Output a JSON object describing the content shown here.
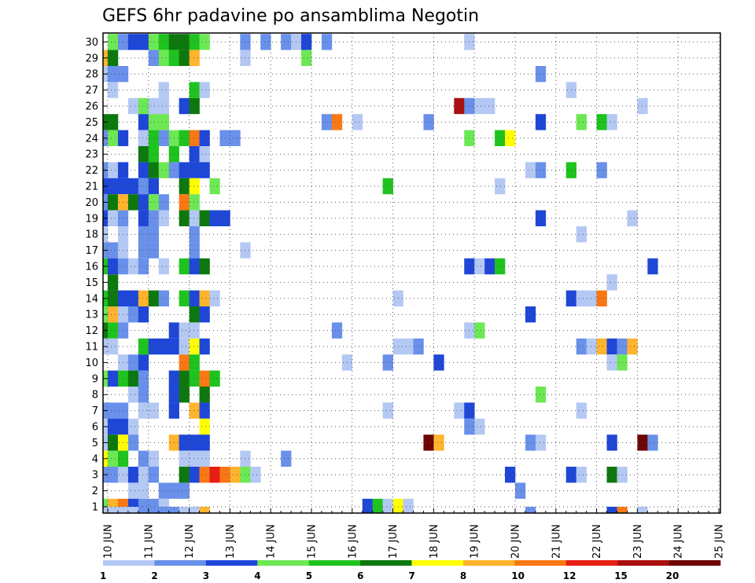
{
  "chart_data": {
    "type": "heatmap",
    "title": "GEFS 6hr padavine po ansamblima Negotin",
    "xlabel": "",
    "ylabel": "",
    "x_tick_labels": [
      "10 JUN",
      "11 JUN",
      "12 JUN",
      "13 JUN",
      "14 JUN",
      "15 JUN",
      "16 JUN",
      "17 JUN",
      "18 JUN",
      "19 JUN",
      "20 JUN",
      "21 JUN",
      "22 JUN",
      "23 JUN",
      "24 JUN",
      "25 JUN"
    ],
    "y_range": [
      0,
      30
    ],
    "y_tick_labels": [
      "1",
      "2",
      "3",
      "4",
      "5",
      "6",
      "7",
      "8",
      "9",
      "10",
      "11",
      "12",
      "13",
      "14",
      "15",
      "16",
      "17",
      "18",
      "19",
      "20",
      "21",
      "22",
      "23",
      "24",
      "25",
      "26",
      "27",
      "28",
      "29",
      "30"
    ],
    "time_steps_per_day": 4,
    "grid": "dotted",
    "legend_placement": "bottom",
    "legend": {
      "colors": [
        "#b4c8f4",
        "#6990ea",
        "#1e46d7",
        "#6de855",
        "#1ec31e",
        "#0d780d",
        "#ffff00",
        "#ffb42d",
        "#fa7814",
        "#e61e14",
        "#aa0f0f",
        "#6e0505"
      ],
      "labels": [
        "1",
        "2",
        "3",
        "4",
        "5",
        "6",
        "7",
        "8",
        "10",
        "12",
        "15",
        "20"
      ]
    },
    "cells": [
      [
        0,
        30,
        4
      ],
      [
        1,
        30,
        2
      ],
      [
        2,
        30,
        3
      ],
      [
        3,
        30,
        3
      ],
      [
        4,
        30,
        4
      ],
      [
        5,
        30,
        5
      ],
      [
        6,
        30,
        6
      ],
      [
        7,
        30,
        6
      ],
      [
        8,
        30,
        5
      ],
      [
        9,
        30,
        4
      ],
      [
        13,
        30,
        2
      ],
      [
        15,
        30,
        2
      ],
      [
        17,
        30,
        2
      ],
      [
        18,
        30,
        1
      ],
      [
        19,
        30,
        3
      ],
      [
        21,
        30,
        2
      ],
      [
        35,
        30,
        1
      ],
      [
        -2,
        29,
        2
      ],
      [
        -1,
        29,
        8
      ],
      [
        0,
        29,
        6
      ],
      [
        4,
        29,
        2
      ],
      [
        5,
        29,
        4
      ],
      [
        6,
        29,
        5
      ],
      [
        7,
        29,
        6
      ],
      [
        8,
        29,
        8
      ],
      [
        13,
        29,
        1
      ],
      [
        19,
        29,
        4
      ],
      [
        -1,
        28,
        1
      ],
      [
        0,
        28,
        2
      ],
      [
        1,
        28,
        2
      ],
      [
        42,
        28,
        2
      ],
      [
        -2,
        27,
        2
      ],
      [
        0,
        27,
        1
      ],
      [
        5,
        27,
        1
      ],
      [
        8,
        27,
        5
      ],
      [
        9,
        27,
        1
      ],
      [
        45,
        27,
        1
      ],
      [
        2,
        26,
        1
      ],
      [
        3,
        26,
        4
      ],
      [
        4,
        26,
        1
      ],
      [
        5,
        26,
        1
      ],
      [
        7,
        26,
        3
      ],
      [
        8,
        26,
        6
      ],
      [
        34,
        26,
        15
      ],
      [
        35,
        26,
        2
      ],
      [
        36,
        26,
        1
      ],
      [
        37,
        26,
        1
      ],
      [
        52,
        26,
        1
      ],
      [
        -1,
        25,
        6
      ],
      [
        0,
        25,
        6
      ],
      [
        3,
        25,
        3
      ],
      [
        4,
        25,
        4
      ],
      [
        5,
        25,
        4
      ],
      [
        21,
        25,
        2
      ],
      [
        22,
        25,
        10
      ],
      [
        24,
        25,
        1
      ],
      [
        31,
        25,
        2
      ],
      [
        42,
        25,
        3
      ],
      [
        46,
        25,
        4
      ],
      [
        48,
        25,
        5
      ],
      [
        49,
        25,
        1
      ],
      [
        -1,
        24,
        2
      ],
      [
        0,
        24,
        4
      ],
      [
        1,
        24,
        3
      ],
      [
        3,
        24,
        1
      ],
      [
        4,
        24,
        5
      ],
      [
        5,
        24,
        2
      ],
      [
        6,
        24,
        4
      ],
      [
        7,
        24,
        5
      ],
      [
        8,
        24,
        10
      ],
      [
        9,
        24,
        3
      ],
      [
        11,
        24,
        2
      ],
      [
        12,
        24,
        2
      ],
      [
        35,
        24,
        4
      ],
      [
        38,
        24,
        5
      ],
      [
        39,
        24,
        7
      ],
      [
        -2,
        23,
        1
      ],
      [
        3,
        23,
        6
      ],
      [
        4,
        23,
        5
      ],
      [
        6,
        23,
        5
      ],
      [
        8,
        23,
        3
      ],
      [
        9,
        23,
        1
      ],
      [
        -1,
        22,
        2
      ],
      [
        0,
        22,
        1
      ],
      [
        1,
        22,
        3
      ],
      [
        3,
        22,
        3
      ],
      [
        4,
        22,
        6
      ],
      [
        5,
        22,
        4
      ],
      [
        6,
        22,
        2
      ],
      [
        7,
        22,
        3
      ],
      [
        8,
        22,
        3
      ],
      [
        9,
        22,
        3
      ],
      [
        41,
        22,
        1
      ],
      [
        42,
        22,
        2
      ],
      [
        45,
        22,
        5
      ],
      [
        48,
        22,
        2
      ],
      [
        -2,
        21,
        2
      ],
      [
        -1,
        21,
        3
      ],
      [
        0,
        21,
        3
      ],
      [
        1,
        21,
        3
      ],
      [
        2,
        21,
        3
      ],
      [
        3,
        21,
        2
      ],
      [
        4,
        21,
        3
      ],
      [
        7,
        21,
        6
      ],
      [
        8,
        21,
        7
      ],
      [
        10,
        21,
        4
      ],
      [
        27,
        21,
        5
      ],
      [
        38,
        21,
        1
      ],
      [
        -2,
        20,
        2
      ],
      [
        -1,
        20,
        2
      ],
      [
        0,
        20,
        6
      ],
      [
        1,
        20,
        8
      ],
      [
        2,
        20,
        6
      ],
      [
        3,
        20,
        3
      ],
      [
        4,
        20,
        4
      ],
      [
        5,
        20,
        2
      ],
      [
        7,
        20,
        10
      ],
      [
        8,
        20,
        4
      ],
      [
        -1,
        19,
        3
      ],
      [
        0,
        19,
        1
      ],
      [
        1,
        19,
        2
      ],
      [
        3,
        19,
        3
      ],
      [
        4,
        19,
        2
      ],
      [
        5,
        19,
        1
      ],
      [
        7,
        19,
        6
      ],
      [
        8,
        19,
        1
      ],
      [
        9,
        19,
        6
      ],
      [
        10,
        19,
        3
      ],
      [
        11,
        19,
        3
      ],
      [
        42,
        19,
        3
      ],
      [
        51,
        19,
        1
      ],
      [
        -1,
        18,
        1
      ],
      [
        1,
        18,
        1
      ],
      [
        3,
        18,
        2
      ],
      [
        4,
        18,
        2
      ],
      [
        8,
        18,
        2
      ],
      [
        46,
        18,
        1
      ],
      [
        -1,
        17,
        2
      ],
      [
        0,
        17,
        2
      ],
      [
        1,
        17,
        1
      ],
      [
        3,
        17,
        2
      ],
      [
        4,
        17,
        2
      ],
      [
        8,
        17,
        2
      ],
      [
        13,
        17,
        1
      ],
      [
        -2,
        16,
        2
      ],
      [
        -1,
        16,
        5
      ],
      [
        0,
        16,
        3
      ],
      [
        1,
        16,
        2
      ],
      [
        2,
        16,
        1
      ],
      [
        3,
        16,
        2
      ],
      [
        5,
        16,
        1
      ],
      [
        7,
        16,
        5
      ],
      [
        8,
        16,
        3
      ],
      [
        9,
        16,
        6
      ],
      [
        35,
        16,
        3
      ],
      [
        36,
        16,
        1
      ],
      [
        37,
        16,
        3
      ],
      [
        38,
        16,
        5
      ],
      [
        53,
        16,
        3
      ],
      [
        0,
        15,
        6
      ],
      [
        49,
        15,
        1
      ],
      [
        -1,
        14,
        5
      ],
      [
        0,
        14,
        6
      ],
      [
        1,
        14,
        3
      ],
      [
        2,
        14,
        3
      ],
      [
        3,
        14,
        8
      ],
      [
        4,
        14,
        6
      ],
      [
        5,
        14,
        2
      ],
      [
        7,
        14,
        5
      ],
      [
        8,
        14,
        3
      ],
      [
        9,
        14,
        8
      ],
      [
        10,
        14,
        1
      ],
      [
        28,
        14,
        1
      ],
      [
        45,
        14,
        3
      ],
      [
        46,
        14,
        1
      ],
      [
        47,
        14,
        1
      ],
      [
        48,
        14,
        11
      ],
      [
        -1,
        13,
        4
      ],
      [
        0,
        13,
        8
      ],
      [
        1,
        13,
        1
      ],
      [
        2,
        13,
        2
      ],
      [
        3,
        13,
        3
      ],
      [
        8,
        13,
        6
      ],
      [
        9,
        13,
        3
      ],
      [
        41,
        13,
        3
      ],
      [
        -2,
        12,
        3
      ],
      [
        -1,
        12,
        6
      ],
      [
        0,
        12,
        5
      ],
      [
        1,
        12,
        2
      ],
      [
        6,
        12,
        3
      ],
      [
        7,
        12,
        1
      ],
      [
        8,
        12,
        1
      ],
      [
        22,
        12,
        2
      ],
      [
        35,
        12,
        1
      ],
      [
        36,
        12,
        4
      ],
      [
        -1,
        11,
        1
      ],
      [
        0,
        11,
        1
      ],
      [
        3,
        11,
        5
      ],
      [
        4,
        11,
        3
      ],
      [
        5,
        11,
        3
      ],
      [
        6,
        11,
        3
      ],
      [
        7,
        11,
        1
      ],
      [
        8,
        11,
        7
      ],
      [
        9,
        11,
        3
      ],
      [
        28,
        11,
        1
      ],
      [
        29,
        11,
        1
      ],
      [
        30,
        11,
        2
      ],
      [
        46,
        11,
        2
      ],
      [
        47,
        11,
        1
      ],
      [
        48,
        11,
        8
      ],
      [
        49,
        11,
        3
      ],
      [
        50,
        11,
        2
      ],
      [
        51,
        11,
        8
      ],
      [
        1,
        10,
        1
      ],
      [
        2,
        10,
        2
      ],
      [
        3,
        10,
        3
      ],
      [
        7,
        10,
        10
      ],
      [
        8,
        10,
        5
      ],
      [
        23,
        10,
        1
      ],
      [
        27,
        10,
        2
      ],
      [
        32,
        10,
        3
      ],
      [
        49,
        10,
        1
      ],
      [
        50,
        10,
        4
      ],
      [
        -2,
        9,
        1
      ],
      [
        -1,
        9,
        4
      ],
      [
        0,
        9,
        3
      ],
      [
        1,
        9,
        5
      ],
      [
        2,
        9,
        6
      ],
      [
        3,
        9,
        2
      ],
      [
        6,
        9,
        3
      ],
      [
        7,
        9,
        6
      ],
      [
        8,
        9,
        5
      ],
      [
        9,
        9,
        10
      ],
      [
        10,
        9,
        5
      ],
      [
        2,
        8,
        1
      ],
      [
        3,
        8,
        2
      ],
      [
        6,
        8,
        3
      ],
      [
        7,
        8,
        6
      ],
      [
        9,
        8,
        6
      ],
      [
        42,
        8,
        4
      ],
      [
        -1,
        7,
        2
      ],
      [
        0,
        7,
        2
      ],
      [
        1,
        7,
        2
      ],
      [
        3,
        7,
        1
      ],
      [
        4,
        7,
        1
      ],
      [
        6,
        7,
        3
      ],
      [
        8,
        7,
        8
      ],
      [
        9,
        7,
        3
      ],
      [
        27,
        7,
        1
      ],
      [
        34,
        7,
        1
      ],
      [
        35,
        7,
        3
      ],
      [
        46,
        7,
        1
      ],
      [
        -2,
        6,
        1
      ],
      [
        -1,
        6,
        1
      ],
      [
        0,
        6,
        3
      ],
      [
        1,
        6,
        3
      ],
      [
        2,
        6,
        1
      ],
      [
        9,
        6,
        7
      ],
      [
        35,
        6,
        2
      ],
      [
        36,
        6,
        1
      ],
      [
        -2,
        5,
        1
      ],
      [
        -1,
        5,
        1
      ],
      [
        0,
        5,
        6
      ],
      [
        1,
        5,
        7
      ],
      [
        2,
        5,
        2
      ],
      [
        6,
        5,
        8
      ],
      [
        7,
        5,
        3
      ],
      [
        8,
        5,
        3
      ],
      [
        9,
        5,
        3
      ],
      [
        31,
        5,
        20
      ],
      [
        32,
        5,
        8
      ],
      [
        41,
        5,
        2
      ],
      [
        42,
        5,
        1
      ],
      [
        49,
        5,
        3
      ],
      [
        52,
        5,
        20
      ],
      [
        53,
        5,
        2
      ],
      [
        -2,
        4,
        2
      ],
      [
        -1,
        4,
        7
      ],
      [
        0,
        4,
        4
      ],
      [
        1,
        4,
        5
      ],
      [
        3,
        4,
        2
      ],
      [
        4,
        4,
        1
      ],
      [
        7,
        4,
        1
      ],
      [
        8,
        4,
        1
      ],
      [
        9,
        4,
        1
      ],
      [
        13,
        4,
        1
      ],
      [
        17,
        4,
        2
      ],
      [
        -1,
        3,
        2
      ],
      [
        0,
        3,
        2
      ],
      [
        1,
        3,
        1
      ],
      [
        2,
        3,
        3
      ],
      [
        3,
        3,
        1
      ],
      [
        4,
        3,
        2
      ],
      [
        7,
        3,
        6
      ],
      [
        8,
        3,
        3
      ],
      [
        9,
        3,
        10
      ],
      [
        10,
        3,
        12
      ],
      [
        11,
        3,
        10
      ],
      [
        12,
        3,
        8
      ],
      [
        13,
        3,
        4
      ],
      [
        14,
        3,
        1
      ],
      [
        39,
        3,
        3
      ],
      [
        45,
        3,
        3
      ],
      [
        46,
        3,
        1
      ],
      [
        49,
        3,
        6
      ],
      [
        50,
        3,
        1
      ],
      [
        2,
        2,
        1
      ],
      [
        3,
        2,
        1
      ],
      [
        5,
        2,
        2
      ],
      [
        6,
        2,
        2
      ],
      [
        7,
        2,
        2
      ],
      [
        40,
        2,
        2
      ],
      [
        -2,
        1,
        3
      ],
      [
        -1,
        1,
        4
      ],
      [
        0,
        1,
        8
      ],
      [
        1,
        1,
        10
      ],
      [
        2,
        1,
        3
      ],
      [
        3,
        1,
        2
      ],
      [
        4,
        1,
        2
      ],
      [
        5,
        1,
        1
      ],
      [
        25,
        1,
        3
      ],
      [
        26,
        1,
        5
      ],
      [
        27,
        1,
        1
      ],
      [
        28,
        1,
        7
      ],
      [
        29,
        1,
        1
      ],
      [
        -2,
        0,
        1
      ],
      [
        -1,
        0,
        1
      ],
      [
        0,
        0,
        1
      ],
      [
        1,
        0,
        1
      ],
      [
        2,
        0,
        1
      ],
      [
        3,
        0,
        2
      ],
      [
        4,
        0,
        2
      ],
      [
        5,
        0,
        2
      ],
      [
        6,
        0,
        2
      ],
      [
        7,
        0,
        1
      ],
      [
        8,
        0,
        1
      ],
      [
        9,
        0,
        8
      ],
      [
        41,
        0,
        2
      ],
      [
        49,
        0,
        3
      ],
      [
        50,
        0,
        10
      ],
      [
        52,
        0,
        1
      ]
    ]
  }
}
